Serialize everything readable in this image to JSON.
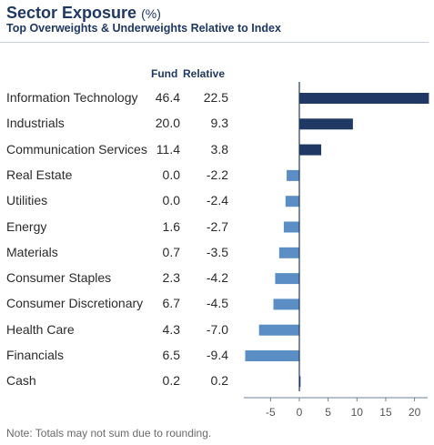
{
  "header": {
    "title": "Sector Exposure",
    "title_unit": "(%)",
    "subtitle": "Top Overweights & Underweights Relative to Index"
  },
  "columns": {
    "fund": "Fund",
    "relative": "Relative"
  },
  "chart_data": {
    "type": "bar",
    "orientation": "horizontal",
    "categories": [
      "Information Technology",
      "Industrials",
      "Communication Services",
      "Real Estate",
      "Utilities",
      "Energy",
      "Materials",
      "Consumer Staples",
      "Consumer Discretionary",
      "Health Care",
      "Financials",
      "Cash"
    ],
    "fund": [
      "46.4",
      "20.0",
      "11.4",
      "0.0",
      "0.0",
      "1.6",
      "0.7",
      "2.3",
      "6.7",
      "4.3",
      "6.5",
      "0.2"
    ],
    "relative_labels": [
      "22.5",
      "9.3",
      "3.8",
      "-2.2",
      "-2.4",
      "-2.7",
      "-3.5",
      "-4.2",
      "-4.5",
      "-7.0",
      "-9.4",
      "0.2"
    ],
    "values": [
      22.5,
      9.3,
      3.8,
      -2.2,
      -2.4,
      -2.7,
      -3.5,
      -4.2,
      -4.5,
      -7.0,
      -9.4,
      0.2
    ],
    "xlim": [
      -9.4,
      22.5
    ],
    "xticks": [
      -5,
      0,
      5,
      10,
      15,
      20
    ],
    "positive_color": "#1f3864",
    "negative_color": "#5b8ec4",
    "axis_color": "#1f3864",
    "grid": false
  },
  "footer": {
    "note": "Note: Totals may not sum due to rounding."
  }
}
